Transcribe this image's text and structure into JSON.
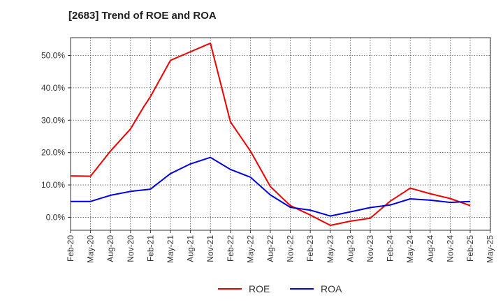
{
  "chart_data": {
    "type": "line",
    "title": "[2683]  Trend of ROE and ROA",
    "xlabel": "",
    "ylabel": "",
    "x_tick_labels": [
      "Feb-20",
      "May-20",
      "Aug-20",
      "Nov-20",
      "Feb-21",
      "May-21",
      "Aug-21",
      "Nov-21",
      "Feb-22",
      "May-22",
      "Aug-22",
      "Nov-22",
      "Feb-23",
      "May-23",
      "Aug-23",
      "Nov-23",
      "Feb-24",
      "May-24",
      "Aug-24",
      "Nov-24",
      "Feb-25",
      "May-25"
    ],
    "y_tick_labels": [
      "0.0%",
      "10.0%",
      "20.0%",
      "30.0%",
      "40.0%",
      "50.0%"
    ],
    "y_ticks": [
      0,
      10,
      20,
      30,
      40,
      50
    ],
    "ylim": [
      -4,
      55.5
    ],
    "grid": true,
    "legend_position": "bottom-center",
    "series": [
      {
        "name": "ROE",
        "color": "#ee0000",
        "x": [
          "Feb-20",
          "May-20",
          "Aug-20",
          "Nov-20",
          "Jan-21",
          "Feb-21",
          "May-21",
          "Nov-21",
          "Feb-22",
          "May-22",
          "Aug-22",
          "Nov-22",
          "Feb-23",
          "May-23",
          "Aug-23",
          "Nov-23",
          "Feb-24",
          "May-24",
          "Aug-24",
          "Nov-24",
          "Feb-25"
        ],
        "values": [
          12.8,
          12.7,
          20.5,
          27.3,
          34.2,
          37.3,
          48.5,
          53.8,
          29.5,
          20.5,
          9.5,
          3.6,
          0.7,
          -2.5,
          -1.2,
          -0.3,
          5.0,
          9.0,
          7.3,
          5.8,
          3.6
        ]
      },
      {
        "name": "ROA",
        "color": "#0000dd",
        "x": [
          "Feb-20",
          "May-20",
          "Aug-20",
          "Nov-20",
          "Feb-21",
          "May-21",
          "Aug-21",
          "Nov-21",
          "Feb-22",
          "May-22",
          "Aug-22",
          "Nov-22",
          "Feb-23",
          "May-23",
          "Aug-23",
          "Nov-23",
          "Feb-24",
          "May-24",
          "Aug-24",
          "Nov-24",
          "Feb-25"
        ],
        "values": [
          4.9,
          4.9,
          6.8,
          8.0,
          8.7,
          13.5,
          16.5,
          18.5,
          14.8,
          12.4,
          6.9,
          3.1,
          2.2,
          0.4,
          1.7,
          3.0,
          3.8,
          5.7,
          5.3,
          4.6,
          4.9
        ]
      }
    ]
  }
}
